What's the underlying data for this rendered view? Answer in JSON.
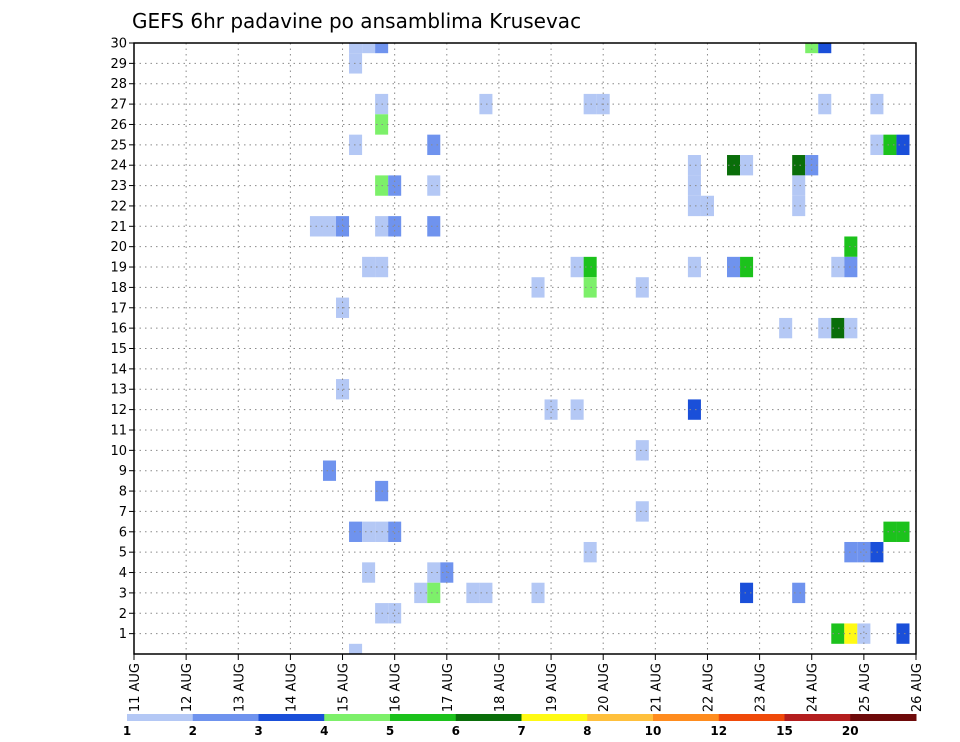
{
  "chart_data": {
    "type": "heatmap",
    "title": "GEFS 6hr padavine po ansamblima Krusevac",
    "xlabel": "",
    "ylabel": "",
    "x_ticks": [
      "11 AUG",
      "12 AUG",
      "13 AUG",
      "14 AUG",
      "15 AUG",
      "16 AUG",
      "17 AUG",
      "18 AUG",
      "19 AUG",
      "20 AUG",
      "21 AUG",
      "22 AUG",
      "23 AUG",
      "24 AUG",
      "25 AUG",
      "26 AUG"
    ],
    "y_ticks": [
      "1",
      "2",
      "3",
      "4",
      "5",
      "6",
      "7",
      "8",
      "9",
      "10",
      "11",
      "12",
      "13",
      "14",
      "15",
      "16",
      "17",
      "18",
      "19",
      "20",
      "21",
      "22",
      "23",
      "24",
      "25",
      "26",
      "27",
      "28",
      "29",
      "30"
    ],
    "xlim_days": [
      11,
      26
    ],
    "ylim": [
      0,
      30
    ],
    "grid": true,
    "colorbar": {
      "position": "bottom",
      "labels": [
        "1",
        "2",
        "3",
        "4",
        "5",
        "6",
        "7",
        "8",
        "10",
        "12",
        "15",
        "20"
      ],
      "colors": [
        "#b4c8f5",
        "#6f93ee",
        "#1a4fd9",
        "#7df06a",
        "#1cc21c",
        "#0a6e0a",
        "#fffa14",
        "#ffc03c",
        "#ff8c1e",
        "#f04a0a",
        "#b41e1e",
        "#6e0a0a"
      ]
    },
    "cells": [
      {
        "m": 30,
        "t": 15.25,
        "v": 1
      },
      {
        "m": 30,
        "t": 15.5,
        "v": 1
      },
      {
        "m": 30,
        "t": 15.75,
        "v": 2
      },
      {
        "m": 30,
        "t": 24,
        "v": 4
      },
      {
        "m": 30,
        "t": 24.25,
        "v": 3
      },
      {
        "m": 29,
        "t": 15.25,
        "v": 1
      },
      {
        "m": 27,
        "t": 15.75,
        "v": 1
      },
      {
        "m": 27,
        "t": 17.75,
        "v": 1
      },
      {
        "m": 27,
        "t": 19.75,
        "v": 1
      },
      {
        "m": 27,
        "t": 20,
        "v": 1
      },
      {
        "m": 27,
        "t": 24.25,
        "v": 1
      },
      {
        "m": 27,
        "t": 25.25,
        "v": 1
      },
      {
        "m": 26,
        "t": 15.75,
        "v": 4
      },
      {
        "m": 25,
        "t": 15.25,
        "v": 1
      },
      {
        "m": 25,
        "t": 16.75,
        "v": 2
      },
      {
        "m": 25,
        "t": 25.25,
        "v": 1
      },
      {
        "m": 25,
        "t": 25.5,
        "v": 5
      },
      {
        "m": 25,
        "t": 25.75,
        "v": 3
      },
      {
        "m": 24,
        "t": 21.75,
        "v": 1
      },
      {
        "m": 24,
        "t": 22.5,
        "v": 6
      },
      {
        "m": 24,
        "t": 22.75,
        "v": 1
      },
      {
        "m": 24,
        "t": 23.75,
        "v": 6
      },
      {
        "m": 24,
        "t": 24,
        "v": 2
      },
      {
        "m": 23,
        "t": 15.75,
        "v": 4
      },
      {
        "m": 23,
        "t": 16,
        "v": 2
      },
      {
        "m": 23,
        "t": 16.75,
        "v": 1
      },
      {
        "m": 23,
        "t": 21.75,
        "v": 1
      },
      {
        "m": 23,
        "t": 23.75,
        "v": 1
      },
      {
        "m": 22,
        "t": 21.75,
        "v": 1
      },
      {
        "m": 22,
        "t": 22,
        "v": 1
      },
      {
        "m": 22,
        "t": 23.75,
        "v": 1
      },
      {
        "m": 21,
        "t": 14.5,
        "v": 1
      },
      {
        "m": 21,
        "t": 14.75,
        "v": 1
      },
      {
        "m": 21,
        "t": 15,
        "v": 2
      },
      {
        "m": 21,
        "t": 15.75,
        "v": 1
      },
      {
        "m": 21,
        "t": 16,
        "v": 2
      },
      {
        "m": 21,
        "t": 16.75,
        "v": 2
      },
      {
        "m": 20,
        "t": 24.75,
        "v": 5
      },
      {
        "m": 19,
        "t": 24.5,
        "v": 1
      },
      {
        "m": 19,
        "t": 24.75,
        "v": 2
      },
      {
        "m": 19,
        "t": 15.5,
        "v": 1
      },
      {
        "m": 19,
        "t": 15.75,
        "v": 1
      },
      {
        "m": 19,
        "t": 19.5,
        "v": 1
      },
      {
        "m": 19,
        "t": 19.75,
        "v": 5
      },
      {
        "m": 19,
        "t": 21.75,
        "v": 1
      },
      {
        "m": 19,
        "t": 22.5,
        "v": 2
      },
      {
        "m": 19,
        "t": 22.75,
        "v": 5
      },
      {
        "m": 18,
        "t": 18.75,
        "v": 1
      },
      {
        "m": 18,
        "t": 19.75,
        "v": 4
      },
      {
        "m": 18,
        "t": 20.75,
        "v": 1
      },
      {
        "m": 17,
        "t": 15,
        "v": 1
      },
      {
        "m": 16,
        "t": 23.5,
        "v": 1
      },
      {
        "m": 16,
        "t": 24.25,
        "v": 1
      },
      {
        "m": 16,
        "t": 24.5,
        "v": 6
      },
      {
        "m": 16,
        "t": 24.75,
        "v": 1
      },
      {
        "m": 13,
        "t": 15,
        "v": 1
      },
      {
        "m": 12,
        "t": 19,
        "v": 1
      },
      {
        "m": 12,
        "t": 19.5,
        "v": 1
      },
      {
        "m": 12,
        "t": 21.75,
        "v": 3
      },
      {
        "m": 10,
        "t": 20.75,
        "v": 1
      },
      {
        "m": 9,
        "t": 14.75,
        "v": 2
      },
      {
        "m": 8,
        "t": 15.75,
        "v": 2
      },
      {
        "m": 7,
        "t": 20.75,
        "v": 1
      },
      {
        "m": 6,
        "t": 15.25,
        "v": 2
      },
      {
        "m": 6,
        "t": 15.5,
        "v": 1
      },
      {
        "m": 6,
        "t": 15.75,
        "v": 1
      },
      {
        "m": 6,
        "t": 16,
        "v": 2
      },
      {
        "m": 6,
        "t": 25.5,
        "v": 5
      },
      {
        "m": 6,
        "t": 25.75,
        "v": 5
      },
      {
        "m": 5,
        "t": 19.75,
        "v": 1
      },
      {
        "m": 5,
        "t": 24.75,
        "v": 2
      },
      {
        "m": 5,
        "t": 25,
        "v": 2
      },
      {
        "m": 5,
        "t": 25.25,
        "v": 3
      },
      {
        "m": 4,
        "t": 15.5,
        "v": 1
      },
      {
        "m": 4,
        "t": 16.75,
        "v": 1
      },
      {
        "m": 4,
        "t": 17,
        "v": 2
      },
      {
        "m": 3,
        "t": 16.5,
        "v": 1
      },
      {
        "m": 3,
        "t": 16.75,
        "v": 4
      },
      {
        "m": 3,
        "t": 17.5,
        "v": 1
      },
      {
        "m": 3,
        "t": 17.75,
        "v": 1
      },
      {
        "m": 3,
        "t": 18.75,
        "v": 1
      },
      {
        "m": 3,
        "t": 22.75,
        "v": 3
      },
      {
        "m": 3,
        "t": 23.75,
        "v": 2
      },
      {
        "m": 2,
        "t": 15.75,
        "v": 1
      },
      {
        "m": 2,
        "t": 16,
        "v": 1
      },
      {
        "m": 1,
        "t": 24.5,
        "v": 5
      },
      {
        "m": 1,
        "t": 24.75,
        "v": 7
      },
      {
        "m": 1,
        "t": 25,
        "v": 1
      },
      {
        "m": 1,
        "t": 25.75,
        "v": 3
      },
      {
        "m": 0,
        "t": 15.25,
        "v": 1
      }
    ]
  }
}
